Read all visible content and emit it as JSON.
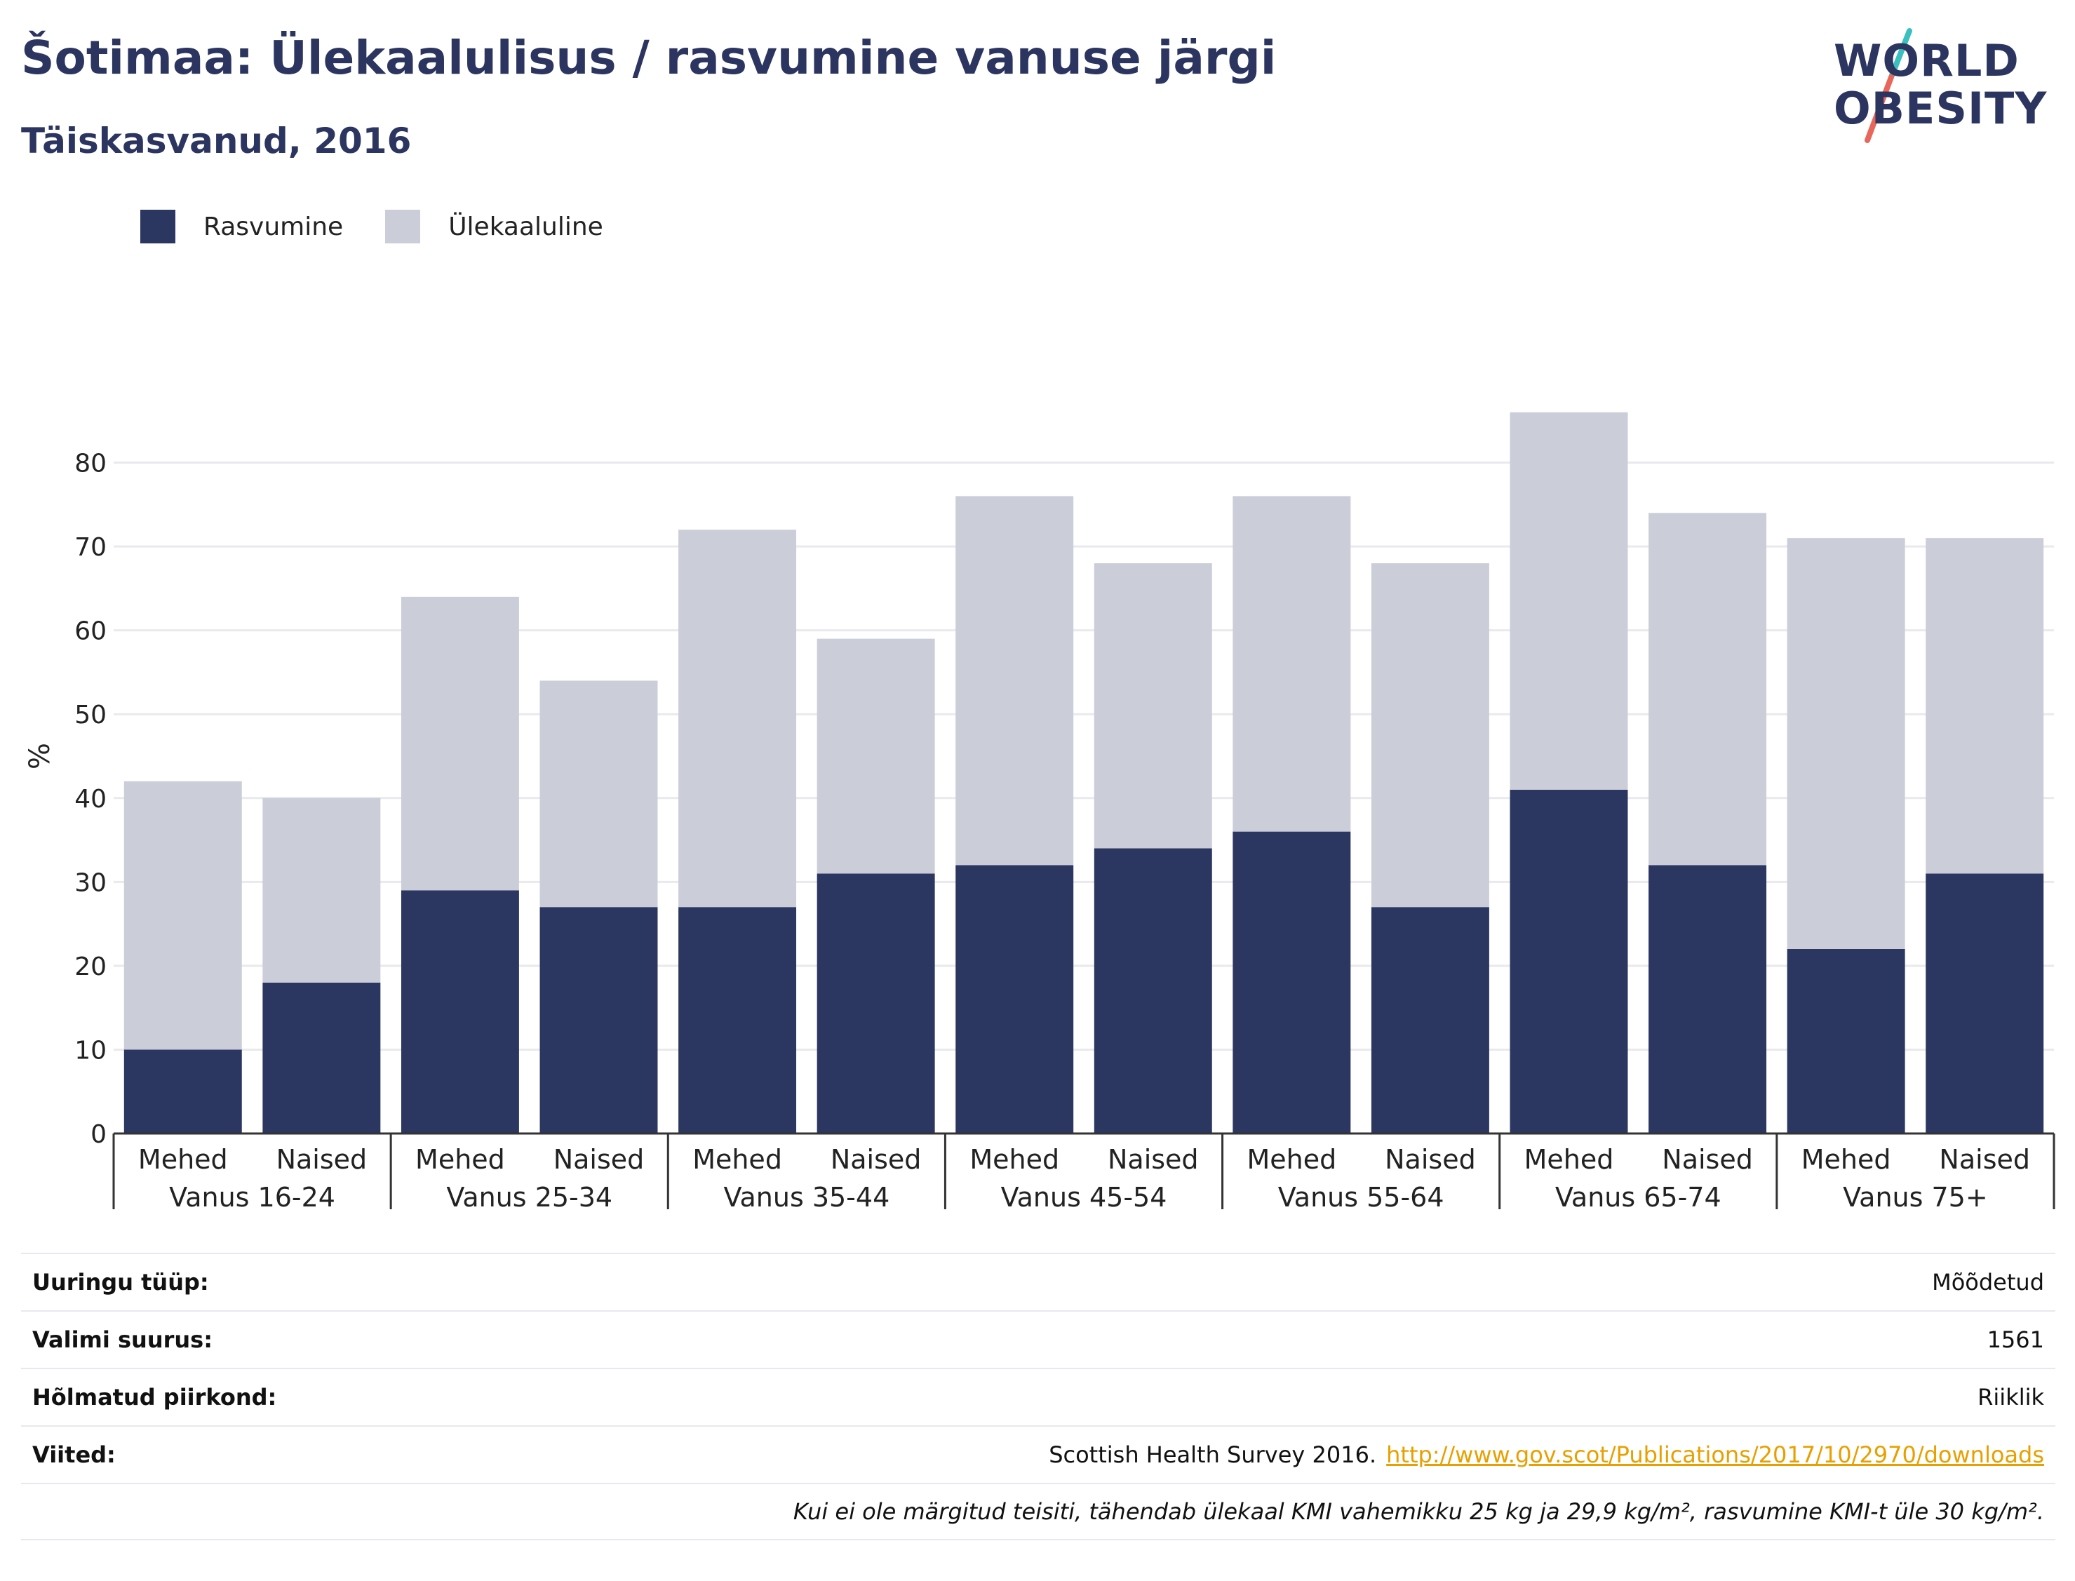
{
  "header": {
    "title": "Šotimaa: Ülekaalulisus / rasvumine vanuse järgi",
    "subtitle": "Täiskasvanud, 2016"
  },
  "logo": {
    "line1": "WORLD",
    "line2": "OBESITY",
    "colors": {
      "slash_top": "#3bbfbf",
      "slash_bottom": "#e8665a",
      "text": "#2b3560"
    }
  },
  "colors": {
    "obesity": "#2b3661",
    "overweight": "#cbcdd8",
    "gridline": "#e9e9ee",
    "axis": "#333333"
  },
  "chart_data": {
    "type": "bar",
    "stacked": true,
    "ylabel": "%",
    "ylim": [
      0,
      90
    ],
    "yticks": [
      0,
      10,
      20,
      30,
      40,
      50,
      60,
      70,
      80
    ],
    "grid": true,
    "legend_position": "top-left",
    "groups": [
      "Vanus 16-24",
      "Vanus 25-34",
      "Vanus 35-44",
      "Vanus 45-54",
      "Vanus 55-64",
      "Vanus 65-74",
      "Vanus 75+"
    ],
    "categories": [
      "Mehed",
      "Naised",
      "Mehed",
      "Naised",
      "Mehed",
      "Naised",
      "Mehed",
      "Naised",
      "Mehed",
      "Naised",
      "Mehed",
      "Naised",
      "Mehed",
      "Naised"
    ],
    "series": [
      {
        "name": "Rasvumine",
        "values": [
          10,
          18,
          29,
          27,
          27,
          31,
          32,
          34,
          36,
          27,
          41,
          32,
          22,
          31
        ]
      },
      {
        "name": "Ülekaaluline",
        "values": [
          32,
          22,
          35,
          27,
          45,
          28,
          44,
          34,
          40,
          41,
          45,
          42,
          49,
          40
        ]
      }
    ]
  },
  "info": {
    "survey_type": {
      "label": "Uuringu tüüp:",
      "value": "Mõõdetud"
    },
    "sample_size": {
      "label": "Valimi suurus:",
      "value": "1561"
    },
    "area": {
      "label": "Hõlmatud piirkond:",
      "value": "Riiklik"
    },
    "references": {
      "label": "Viited:",
      "text": "Scottish Health Survey 2016.",
      "link": "http://www.gov.scot/Publications/2017/10/2970/downloads"
    },
    "note": "Kui ei ole märgitud teisiti, tähendab ülekaal KMI vahemikku 25 kg ja 29,9 kg/m², rasvumine KMI-t üle 30 kg/m²."
  }
}
